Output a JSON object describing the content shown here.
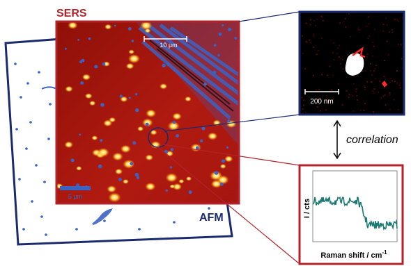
{
  "labels": {
    "sers": "SERS",
    "afm": "AFM",
    "correlation": "correlation",
    "scale_10um": "10 µm",
    "scale_5um": "5 µm",
    "scale_200nm": "200 nm",
    "spectrum_ylabel": "I / cts",
    "spectrum_xlabel": "Raman shift / cm",
    "spectrum_xlabel_sup": "-1"
  },
  "colors": {
    "sers_frame": "#b2222a",
    "afm_frame": "#1b2a6e",
    "map_background": "#a8160e",
    "hotspot": "#ffd040",
    "afm_feature": "#3b63c4",
    "spectrum_line": "#1c7a73",
    "inset_background": "#000000"
  },
  "icons": {
    "correlation_arrow": "double-vertical-arrow-icon"
  }
}
